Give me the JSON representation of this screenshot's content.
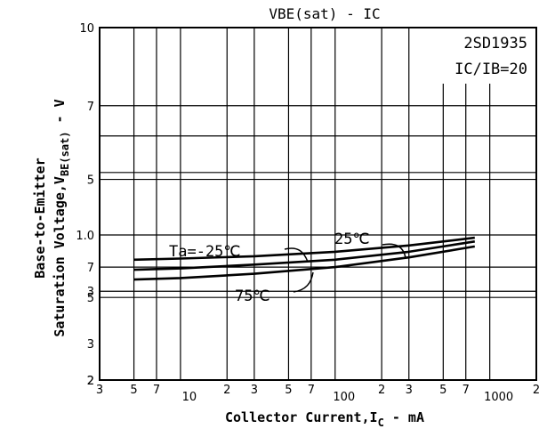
{
  "chart_data": {
    "type": "line",
    "title": "VBE(sat) - IC",
    "xlabel": "Collector Current,IC - mA",
    "ylabel_line1": "Base-to-Emitter",
    "ylabel_line2": "Saturation Voltage,VBE(sat) - V",
    "xscale": "log",
    "yscale": "log",
    "xlim": [
      3,
      2000
    ],
    "ylim": [
      2,
      10
    ],
    "grid": true,
    "x_ticks": [
      {
        "value": 3,
        "label": "3"
      },
      {
        "value": 5,
        "label": "5"
      },
      {
        "value": 7,
        "label": "7"
      },
      {
        "value": 10,
        "label": "10"
      },
      {
        "value": 20,
        "label": "2"
      },
      {
        "value": 30,
        "label": "3"
      },
      {
        "value": 50,
        "label": "5"
      },
      {
        "value": 70,
        "label": "7"
      },
      {
        "value": 100,
        "label": "100"
      },
      {
        "value": 200,
        "label": "2"
      },
      {
        "value": 300,
        "label": "3"
      },
      {
        "value": 500,
        "label": "5"
      },
      {
        "value": 700,
        "label": "7"
      },
      {
        "value": 1000,
        "label": "1000"
      },
      {
        "value": 2000,
        "label": "2"
      }
    ],
    "y_ticks": [
      {
        "value": 2,
        "label": "2"
      },
      {
        "value": 3,
        "label": "3"
      },
      {
        "value": 5,
        "label": "5"
      },
      {
        "value": 7,
        "label": "7"
      },
      {
        "value": 10,
        "label": "10"
      }
    ],
    "y_minor_ticks": [
      {
        "value": 0.5,
        "label": "5"
      },
      {
        "value": 0.7,
        "label": "7"
      },
      {
        "value": 1.0,
        "label": "1.0"
      },
      {
        "value": 2,
        "label": "2"
      },
      {
        "value": 3,
        "label": "3"
      }
    ],
    "device_label": "2SD1935",
    "condition_label": "IC/IB=20",
    "series": [
      {
        "name": "Ta=-25℃",
        "x": [
          5,
          10,
          30,
          100,
          300,
          800
        ],
        "y": [
          0.76,
          0.77,
          0.79,
          0.83,
          0.89,
          0.97
        ]
      },
      {
        "name": "25℃",
        "x": [
          5,
          10,
          30,
          100,
          300,
          800
        ],
        "y": [
          0.68,
          0.69,
          0.72,
          0.76,
          0.83,
          0.93
        ]
      },
      {
        "name": "75℃",
        "x": [
          5,
          10,
          30,
          100,
          300,
          800
        ],
        "y": [
          0.61,
          0.62,
          0.65,
          0.7,
          0.78,
          0.88
        ]
      }
    ]
  }
}
